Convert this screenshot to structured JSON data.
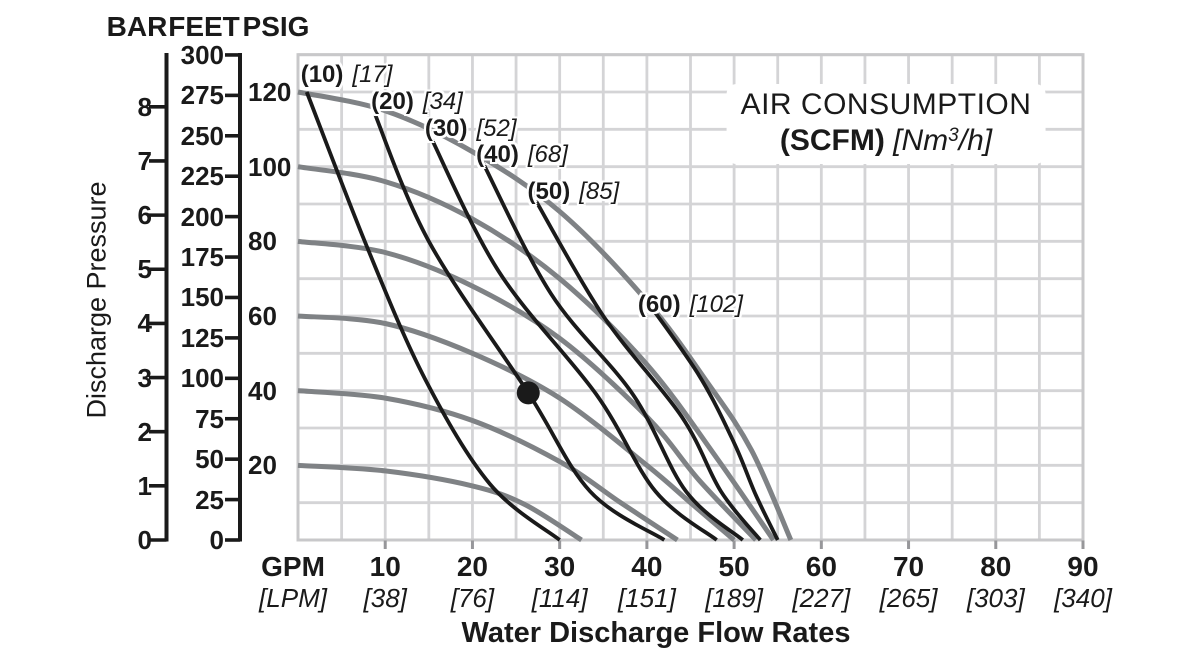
{
  "unit_headers": {
    "bar": "BAR",
    "feet": "FEET",
    "psig": "PSIG"
  },
  "y_axis": {
    "label": "Discharge Pressure",
    "bar_ticks": [
      8,
      7,
      6,
      5,
      4,
      3,
      2,
      1,
      0
    ],
    "feet_ticks": [
      300,
      275,
      250,
      225,
      200,
      175,
      150,
      125,
      100,
      75,
      50,
      25,
      0
    ],
    "psig_ticks": [
      120,
      100,
      80,
      60,
      40,
      20
    ]
  },
  "x_axis": {
    "unit_primary": "GPM",
    "unit_secondary": "[LPM]",
    "title": "Water Discharge Flow Rates",
    "ticks": [
      {
        "gpm": "10",
        "lpm": "[38]"
      },
      {
        "gpm": "20",
        "lpm": "[76]"
      },
      {
        "gpm": "30",
        "lpm": "[114]"
      },
      {
        "gpm": "40",
        "lpm": "[151]"
      },
      {
        "gpm": "50",
        "lpm": "[189]"
      },
      {
        "gpm": "60",
        "lpm": "[227]"
      },
      {
        "gpm": "70",
        "lpm": "[265]"
      },
      {
        "gpm": "80",
        "lpm": "[303]"
      },
      {
        "gpm": "90",
        "lpm": "[340]"
      }
    ]
  },
  "legend": {
    "line1": "AIR CONSUMPTION",
    "scfm": "(SCFM)",
    "nm_pre": " [Nm",
    "nm_sup": "3",
    "nm_post": "/h]"
  },
  "colors": {
    "black": "#1a1a1a",
    "curve_gray": "#7f8285",
    "grid": "#d4d4d6",
    "grid_border": "#c8c8ca",
    "tick_stub": "#97979a"
  },
  "chart_data": {
    "type": "line",
    "x_unit": "GPM",
    "x_range": [
      0,
      90
    ],
    "y_unit": "PSIG",
    "y_range": [
      0,
      130
    ],
    "grid_step_x_gpm": 5,
    "grid_step_y_psig": 10,
    "legend_position": "top-right",
    "pump_curves": [
      {
        "air_inlet_psig": 120,
        "points": [
          [
            0,
            120
          ],
          [
            10,
            115
          ],
          [
            20,
            104
          ],
          [
            30,
            88
          ],
          [
            40,
            64
          ],
          [
            47,
            42
          ],
          [
            52,
            24
          ],
          [
            56.5,
            0
          ]
        ]
      },
      {
        "air_inlet_psig": 100,
        "points": [
          [
            0,
            100
          ],
          [
            10,
            96
          ],
          [
            20,
            86
          ],
          [
            30,
            70
          ],
          [
            40,
            47
          ],
          [
            48,
            22
          ],
          [
            54.5,
            0
          ]
        ]
      },
      {
        "air_inlet_psig": 80,
        "points": [
          [
            0,
            80
          ],
          [
            10,
            77
          ],
          [
            20,
            68
          ],
          [
            30,
            54
          ],
          [
            40,
            33
          ],
          [
            46,
            16
          ],
          [
            52.5,
            0
          ]
        ]
      },
      {
        "air_inlet_psig": 60,
        "points": [
          [
            0,
            60
          ],
          [
            10,
            58
          ],
          [
            20,
            50
          ],
          [
            30,
            38
          ],
          [
            40,
            20
          ],
          [
            45,
            10
          ],
          [
            50,
            0
          ]
        ]
      },
      {
        "air_inlet_psig": 40,
        "points": [
          [
            0,
            40
          ],
          [
            10,
            38
          ],
          [
            20,
            32
          ],
          [
            30,
            21
          ],
          [
            37,
            10
          ],
          [
            43.5,
            0
          ]
        ]
      },
      {
        "air_inlet_psig": 20,
        "points": [
          [
            0,
            20
          ],
          [
            10,
            18.5
          ],
          [
            20,
            14.5
          ],
          [
            26,
            9.5
          ],
          [
            32.5,
            0
          ]
        ]
      }
    ],
    "air_consumption_curves": [
      {
        "scfm_label": "(10)",
        "nm3h_label": "[17]",
        "points": [
          [
            1,
            120
          ],
          [
            8,
            78
          ],
          [
            14.6,
            43
          ],
          [
            22,
            15
          ],
          [
            30,
            0
          ]
        ]
      },
      {
        "scfm_label": "(20)",
        "nm3h_label": "[34]",
        "points": [
          [
            8.5,
            116
          ],
          [
            15,
            80
          ],
          [
            26.4,
            39.4
          ],
          [
            33.5,
            13
          ],
          [
            42,
            0
          ]
        ]
      },
      {
        "scfm_label": "(30)",
        "nm3h_label": "[52]",
        "points": [
          [
            15,
            109
          ],
          [
            23,
            72
          ],
          [
            34.2,
            39
          ],
          [
            41,
            13
          ],
          [
            48,
            0
          ]
        ]
      },
      {
        "scfm_label": "(40)",
        "nm3h_label": "[68]",
        "points": [
          [
            21,
            102
          ],
          [
            29,
            66
          ],
          [
            38.4,
            39
          ],
          [
            44.5,
            13
          ],
          [
            51,
            0
          ]
        ]
      },
      {
        "scfm_label": "(50)",
        "nm3h_label": "[85]",
        "points": [
          [
            27,
            92
          ],
          [
            35,
            60
          ],
          [
            44,
            33
          ],
          [
            48.5,
            13
          ],
          [
            53,
            0
          ]
        ]
      },
      {
        "scfm_label": "(60)",
        "nm3h_label": "[102]",
        "points": [
          [
            40,
            64
          ],
          [
            46,
            44
          ],
          [
            50,
            26
          ],
          [
            52.5,
            12
          ],
          [
            55,
            0
          ]
        ]
      }
    ],
    "operating_point": {
      "gpm": 26.4,
      "psig": 39.4
    }
  }
}
